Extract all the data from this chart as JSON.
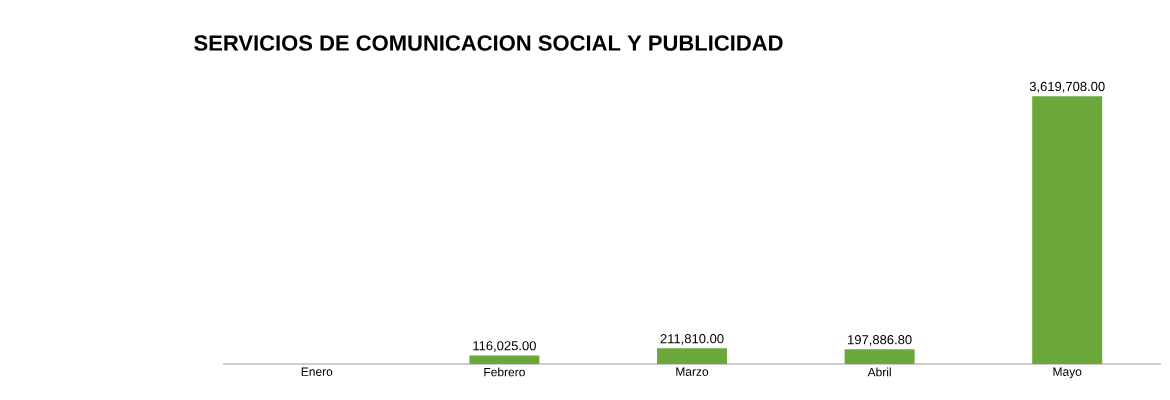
{
  "chart_data": {
    "type": "bar",
    "title": "SERVICIOS DE COMUNICACION SOCIAL Y PUBLICIDAD",
    "categories": [
      "Enero",
      "Febrero",
      "Marzo",
      "Abril",
      "Mayo"
    ],
    "values": [
      null,
      116025.0,
      211810.0,
      197886.8,
      3619708.0
    ],
    "value_labels": [
      null,
      "116,025.00",
      "211,810.00",
      "197,886.80",
      "3,619,708.00"
    ],
    "color": "#6aa83c"
  }
}
